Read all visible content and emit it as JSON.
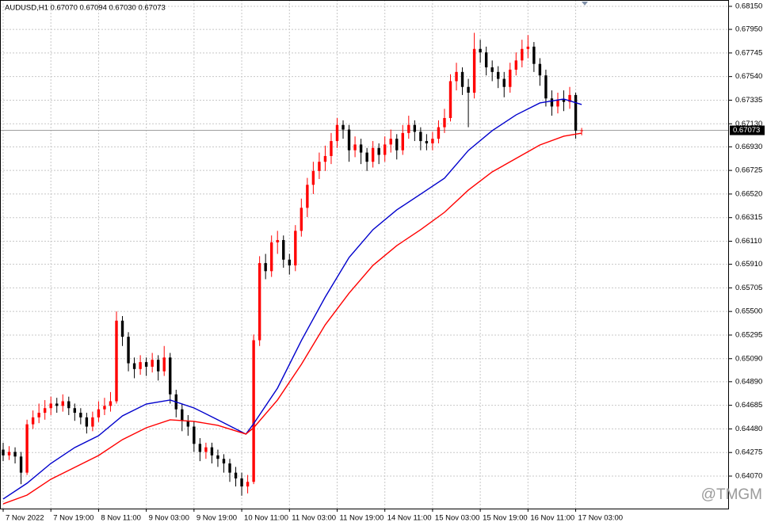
{
  "chart_data": {
    "type": "candlestick",
    "title": "AUDUSD,H1 0.67070 0.67094 0.67030 0.67073",
    "watermark": "@TMGM",
    "up_color": "#ff0000",
    "down_color": "#000000",
    "grid": true,
    "ylim": [
      0.63788,
      0.68205
    ],
    "xlim": [
      -0.53,
      121.7
    ],
    "yticks": [
      {
        "value": 0.6815,
        "label": "0.68150"
      },
      {
        "value": 0.6795,
        "label": "0.67950"
      },
      {
        "value": 0.67745,
        "label": "0.67745"
      },
      {
        "value": 0.6754,
        "label": "0.67540"
      },
      {
        "value": 0.67335,
        "label": "0.67335"
      },
      {
        "value": 0.6713,
        "label": "0.67130"
      },
      {
        "value": 0.6693,
        "label": "0.66930"
      },
      {
        "value": 0.66725,
        "label": "0.66725"
      },
      {
        "value": 0.6652,
        "label": "0.66520"
      },
      {
        "value": 0.66315,
        "label": "0.66315"
      },
      {
        "value": 0.6611,
        "label": "0.66110"
      },
      {
        "value": 0.6591,
        "label": "0.65910"
      },
      {
        "value": 0.65705,
        "label": "0.65705"
      },
      {
        "value": 0.655,
        "label": "0.65500"
      },
      {
        "value": 0.65295,
        "label": "0.65295"
      },
      {
        "value": 0.6509,
        "label": "0.65090"
      },
      {
        "value": 0.6489,
        "label": "0.64890"
      },
      {
        "value": 0.64685,
        "label": "0.64685"
      },
      {
        "value": 0.6448,
        "label": "0.64480"
      },
      {
        "value": 0.64275,
        "label": "0.64275"
      },
      {
        "value": 0.6407,
        "label": "0.64070"
      }
    ],
    "xticks": [
      {
        "value": 0,
        "label": "7 Nov 2022"
      },
      {
        "value": 8,
        "label": "7 Nov 19:00"
      },
      {
        "value": 16,
        "label": "8 Nov 11:00"
      },
      {
        "value": 24,
        "label": "9 Nov 03:00"
      },
      {
        "value": 32,
        "label": "9 Nov 19:00"
      },
      {
        "value": 40,
        "label": "10 Nov 11:00"
      },
      {
        "value": 48,
        "label": "11 Nov 03:00"
      },
      {
        "value": 56,
        "label": "11 Nov 19:00"
      },
      {
        "value": 64,
        "label": "14 Nov 11:00"
      },
      {
        "value": 72,
        "label": "15 Nov 03:00"
      },
      {
        "value": 80,
        "label": "15 Nov 19:00"
      },
      {
        "value": 88,
        "label": "16 Nov 11:00"
      },
      {
        "value": 96,
        "label": "17 Nov 03:00"
      }
    ],
    "open": [
      0.643,
      0.6425,
      0.6428,
      0.6424,
      0.641,
      0.6452,
      0.6458,
      0.6462,
      0.6466,
      0.647,
      0.6468,
      0.6472,
      0.6466,
      0.6462,
      0.6458,
      0.645,
      0.6458,
      0.6465,
      0.6468,
      0.6472,
      0.6542,
      0.6528,
      0.6505,
      0.65,
      0.6506,
      0.6502,
      0.6508,
      0.6498,
      0.651,
      0.6478,
      0.6465,
      0.6455,
      0.645,
      0.6435,
      0.6428,
      0.6432,
      0.6425,
      0.6422,
      0.6418,
      0.641,
      0.6405,
      0.6398,
      0.6402,
      0.6525,
      0.6592,
      0.6585,
      0.661,
      0.6612,
      0.6595,
      0.659,
      0.662,
      0.664,
      0.666,
      0.6672,
      0.668,
      0.6685,
      0.6698,
      0.6712,
      0.6708,
      0.669,
      0.6695,
      0.6688,
      0.668,
      0.6692,
      0.6686,
      0.6695,
      0.67,
      0.669,
      0.6705,
      0.6712,
      0.6706,
      0.6698,
      0.6696,
      0.67,
      0.671,
      0.6718,
      0.675,
      0.6758,
      0.6745,
      0.674,
      0.6778,
      0.6775,
      0.6762,
      0.6758,
      0.6752,
      0.6745,
      0.676,
      0.6768,
      0.6778,
      0.678,
      0.6765,
      0.6755,
      0.6735,
      0.6728,
      0.6734,
      0.6732,
      0.6738,
      0.6707
    ],
    "high": [
      0.6436,
      0.6433,
      0.6432,
      0.6428,
      0.6456,
      0.6464,
      0.647,
      0.6473,
      0.6476,
      0.6475,
      0.6478,
      0.6476,
      0.647,
      0.6466,
      0.6462,
      0.6463,
      0.6472,
      0.6475,
      0.648,
      0.655,
      0.6546,
      0.6532,
      0.651,
      0.6512,
      0.651,
      0.6514,
      0.6512,
      0.652,
      0.6514,
      0.6482,
      0.647,
      0.646,
      0.6455,
      0.644,
      0.6436,
      0.6436,
      0.643,
      0.6426,
      0.6422,
      0.6415,
      0.641,
      0.6408,
      0.653,
      0.6598,
      0.66,
      0.6616,
      0.662,
      0.6616,
      0.66,
      0.6625,
      0.6648,
      0.6666,
      0.668,
      0.6688,
      0.6694,
      0.6705,
      0.6718,
      0.6716,
      0.6712,
      0.6702,
      0.67,
      0.6692,
      0.6698,
      0.6696,
      0.6702,
      0.6708,
      0.6704,
      0.6712,
      0.672,
      0.6716,
      0.671,
      0.6704,
      0.6706,
      0.6716,
      0.6726,
      0.6756,
      0.6766,
      0.6762,
      0.6752,
      0.6792,
      0.6786,
      0.678,
      0.6768,
      0.6763,
      0.6758,
      0.6766,
      0.6775,
      0.6786,
      0.679,
      0.6784,
      0.677,
      0.676,
      0.6742,
      0.674,
      0.6742,
      0.6745,
      0.674,
      0.67094
    ],
    "low": [
      0.642,
      0.6421,
      0.6418,
      0.64,
      0.6408,
      0.6448,
      0.6453,
      0.6456,
      0.646,
      0.6462,
      0.6463,
      0.646,
      0.6455,
      0.6452,
      0.6444,
      0.6446,
      0.6454,
      0.646,
      0.6463,
      0.647,
      0.652,
      0.6498,
      0.6492,
      0.6495,
      0.6494,
      0.6497,
      0.649,
      0.6494,
      0.647,
      0.6458,
      0.6446,
      0.6442,
      0.6428,
      0.642,
      0.6422,
      0.6418,
      0.6415,
      0.641,
      0.6402,
      0.6398,
      0.639,
      0.6392,
      0.64,
      0.652,
      0.6578,
      0.658,
      0.66,
      0.6588,
      0.6582,
      0.6585,
      0.6615,
      0.6632,
      0.6652,
      0.6665,
      0.6672,
      0.6678,
      0.6692,
      0.67,
      0.668,
      0.6684,
      0.6678,
      0.6672,
      0.6675,
      0.6678,
      0.668,
      0.6688,
      0.6682,
      0.6686,
      0.67,
      0.6698,
      0.669,
      0.669,
      0.669,
      0.6696,
      0.6705,
      0.6715,
      0.6742,
      0.6738,
      0.671,
      0.6735,
      0.6766,
      0.6755,
      0.675,
      0.6744,
      0.6736,
      0.674,
      0.6755,
      0.6762,
      0.677,
      0.6758,
      0.6746,
      0.6728,
      0.672,
      0.6722,
      0.6724,
      0.6726,
      0.67,
      0.6703
    ],
    "close": [
      0.6425,
      0.6428,
      0.6424,
      0.641,
      0.6452,
      0.6458,
      0.6462,
      0.6466,
      0.647,
      0.6468,
      0.6472,
      0.6466,
      0.6462,
      0.6458,
      0.645,
      0.6458,
      0.6465,
      0.6468,
      0.6472,
      0.6542,
      0.6528,
      0.6505,
      0.65,
      0.6506,
      0.6502,
      0.6508,
      0.6498,
      0.651,
      0.6478,
      0.6465,
      0.6455,
      0.645,
      0.6435,
      0.6428,
      0.6432,
      0.6425,
      0.6422,
      0.6418,
      0.641,
      0.6405,
      0.6398,
      0.6402,
      0.6525,
      0.6592,
      0.6585,
      0.661,
      0.6612,
      0.6595,
      0.659,
      0.662,
      0.664,
      0.666,
      0.6672,
      0.668,
      0.6685,
      0.6698,
      0.6712,
      0.6708,
      0.669,
      0.6695,
      0.6688,
      0.668,
      0.6692,
      0.6686,
      0.6695,
      0.67,
      0.669,
      0.6705,
      0.6712,
      0.6706,
      0.6698,
      0.6696,
      0.67,
      0.671,
      0.6718,
      0.675,
      0.6758,
      0.6745,
      0.674,
      0.6778,
      0.6775,
      0.6762,
      0.6758,
      0.6752,
      0.6745,
      0.676,
      0.6768,
      0.6778,
      0.678,
      0.6765,
      0.6755,
      0.6735,
      0.6728,
      0.6734,
      0.6732,
      0.6738,
      0.6707,
      0.67073
    ],
    "ma_lines": [
      {
        "color": "#0000cc",
        "x": [
          0,
          4,
          8,
          12,
          16,
          20,
          24,
          28,
          32,
          36,
          40.7,
          42,
          46,
          50,
          54,
          58,
          62,
          66,
          70,
          74,
          78,
          82,
          86,
          90,
          94,
          97
        ],
        "values": [
          0.63871,
          0.64008,
          0.6418,
          0.64318,
          0.64421,
          0.64593,
          0.64696,
          0.64731,
          0.64662,
          0.64559,
          0.64435,
          0.64525,
          0.64834,
          0.65247,
          0.65625,
          0.65969,
          0.6621,
          0.66382,
          0.66519,
          0.66657,
          0.66898,
          0.6707,
          0.67207,
          0.67311,
          0.67345,
          0.67297
        ]
      },
      {
        "color": "#ff0000",
        "x": [
          0,
          4,
          8,
          12,
          16,
          20,
          24,
          28,
          32,
          36,
          40.7,
          42,
          46,
          50,
          54,
          58,
          62,
          66,
          70,
          74,
          78,
          82,
          86,
          90,
          94,
          97
        ],
        "values": [
          0.63829,
          0.63905,
          0.64043,
          0.64146,
          0.64249,
          0.64387,
          0.6449,
          0.64559,
          0.64545,
          0.64511,
          0.64435,
          0.6449,
          0.64731,
          0.6504,
          0.65384,
          0.65659,
          0.659,
          0.66072,
          0.6621,
          0.66361,
          0.66554,
          0.66712,
          0.66829,
          0.66946,
          0.67022,
          0.67049
        ]
      }
    ]
  }
}
